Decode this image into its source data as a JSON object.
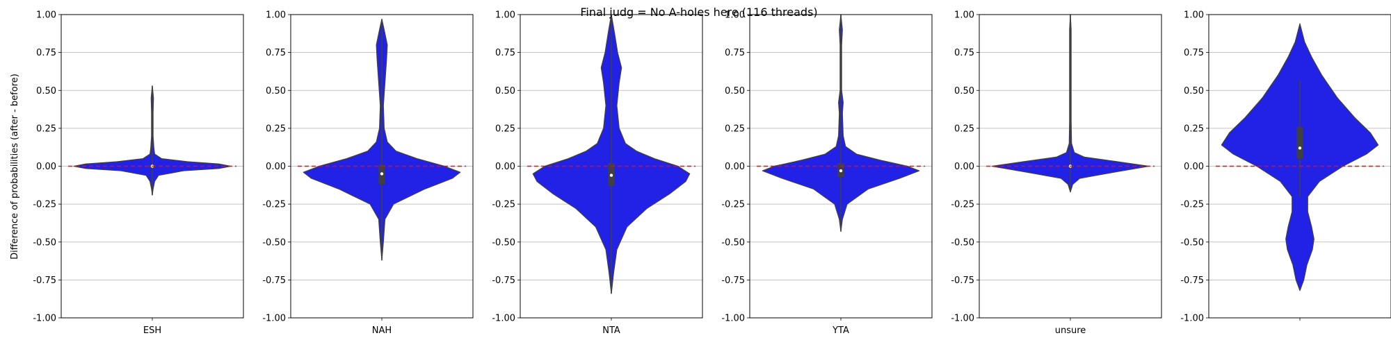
{
  "chart_data": {
    "type": "violin",
    "title": "Final judg = No A-holes here (116 threads)",
    "ylabel": "Difference of probabilities (after - before)",
    "ylim": [
      -1.0,
      1.0
    ],
    "yticks": [
      "-1.00",
      "-0.75",
      "-0.50",
      "-0.25",
      "0.00",
      "0.25",
      "0.50",
      "0.75",
      "1.00"
    ],
    "grid": "horizontal",
    "reference_line": {
      "y": 0.0,
      "style": "dashed",
      "color": "#ff0000"
    },
    "colors": {
      "violin_fill": "#2222e6",
      "violin_edge": "#404040",
      "box": "#404040",
      "median": "#ffffff"
    },
    "panels": [
      {
        "category": "ESH",
        "summary": {
          "min": -0.19,
          "q1": -0.01,
          "median": 0.0,
          "q3": 0.01,
          "max": 0.53
        },
        "density_profile": [
          [
            -0.19,
            0.0
          ],
          [
            -0.15,
            0.01
          ],
          [
            -0.1,
            0.03
          ],
          [
            -0.06,
            0.08
          ],
          [
            -0.03,
            0.4
          ],
          [
            -0.015,
            0.85
          ],
          [
            0.0,
            1.0
          ],
          [
            0.015,
            0.85
          ],
          [
            0.03,
            0.45
          ],
          [
            0.05,
            0.12
          ],
          [
            0.08,
            0.03
          ],
          [
            0.12,
            0.02
          ],
          [
            0.2,
            0.01
          ],
          [
            0.35,
            0.01
          ],
          [
            0.45,
            0.015
          ],
          [
            0.53,
            0.0
          ]
        ]
      },
      {
        "category": "NAH",
        "summary": {
          "min": -0.62,
          "q1": -0.12,
          "median": -0.05,
          "q3": 0.01,
          "max": 0.97
        },
        "density_profile": [
          [
            -0.62,
            0.0
          ],
          [
            -0.5,
            0.02
          ],
          [
            -0.35,
            0.04
          ],
          [
            -0.25,
            0.15
          ],
          [
            -0.15,
            0.55
          ],
          [
            -0.08,
            0.9
          ],
          [
            -0.04,
            1.0
          ],
          [
            0.0,
            0.8
          ],
          [
            0.05,
            0.45
          ],
          [
            0.1,
            0.18
          ],
          [
            0.16,
            0.07
          ],
          [
            0.25,
            0.03
          ],
          [
            0.4,
            0.02
          ],
          [
            0.55,
            0.04
          ],
          [
            0.7,
            0.06
          ],
          [
            0.8,
            0.07
          ],
          [
            0.9,
            0.03
          ],
          [
            0.97,
            0.0
          ]
        ]
      },
      {
        "category": "NTA",
        "summary": {
          "min": -0.84,
          "q1": -0.13,
          "median": -0.06,
          "q3": 0.02,
          "max": 1.0
        },
        "density_profile": [
          [
            -0.84,
            0.0
          ],
          [
            -0.7,
            0.03
          ],
          [
            -0.55,
            0.07
          ],
          [
            -0.4,
            0.2
          ],
          [
            -0.28,
            0.45
          ],
          [
            -0.18,
            0.75
          ],
          [
            -0.1,
            0.95
          ],
          [
            -0.05,
            1.0
          ],
          [
            0.0,
            0.85
          ],
          [
            0.05,
            0.55
          ],
          [
            0.1,
            0.32
          ],
          [
            0.15,
            0.18
          ],
          [
            0.25,
            0.1
          ],
          [
            0.4,
            0.07
          ],
          [
            0.55,
            0.1
          ],
          [
            0.65,
            0.13
          ],
          [
            0.75,
            0.08
          ],
          [
            0.88,
            0.04
          ],
          [
            1.0,
            0.0
          ]
        ]
      },
      {
        "category": "YTA",
        "summary": {
          "min": -0.43,
          "q1": -0.07,
          "median": -0.03,
          "q3": 0.02,
          "max": 1.0
        },
        "density_profile": [
          [
            -0.43,
            0.0
          ],
          [
            -0.35,
            0.02
          ],
          [
            -0.25,
            0.08
          ],
          [
            -0.15,
            0.35
          ],
          [
            -0.08,
            0.75
          ],
          [
            -0.03,
            1.0
          ],
          [
            0.0,
            0.85
          ],
          [
            0.04,
            0.5
          ],
          [
            0.08,
            0.2
          ],
          [
            0.13,
            0.06
          ],
          [
            0.2,
            0.03
          ],
          [
            0.35,
            0.02
          ],
          [
            0.42,
            0.03
          ],
          [
            0.5,
            0.01
          ],
          [
            0.8,
            0.01
          ],
          [
            0.9,
            0.02
          ],
          [
            1.0,
            0.0
          ]
        ]
      },
      {
        "category": "unsure",
        "summary": {
          "min": -0.17,
          "q1": -0.005,
          "median": 0.0,
          "q3": 0.005,
          "max": 1.0
        },
        "density_profile": [
          [
            -0.17,
            0.0
          ],
          [
            -0.12,
            0.03
          ],
          [
            -0.08,
            0.12
          ],
          [
            -0.04,
            0.55
          ],
          [
            0.0,
            1.0
          ],
          [
            0.03,
            0.6
          ],
          [
            0.06,
            0.18
          ],
          [
            0.09,
            0.05
          ],
          [
            0.15,
            0.015
          ],
          [
            0.3,
            0.01
          ],
          [
            0.6,
            0.01
          ],
          [
            0.9,
            0.01
          ],
          [
            1.0,
            0.0
          ]
        ]
      },
      {
        "category": "",
        "summary": {
          "min": -0.2,
          "q1": 0.05,
          "median": 0.12,
          "q3": 0.26,
          "max": 0.57
        },
        "density_profile": [
          [
            -0.82,
            0.0
          ],
          [
            -0.75,
            0.05
          ],
          [
            -0.65,
            0.09
          ],
          [
            -0.55,
            0.16
          ],
          [
            -0.48,
            0.18
          ],
          [
            -0.4,
            0.15
          ],
          [
            -0.3,
            0.1
          ],
          [
            -0.2,
            0.1
          ],
          [
            -0.1,
            0.25
          ],
          [
            0.0,
            0.55
          ],
          [
            0.08,
            0.85
          ],
          [
            0.14,
            1.0
          ],
          [
            0.22,
            0.9
          ],
          [
            0.32,
            0.7
          ],
          [
            0.45,
            0.48
          ],
          [
            0.6,
            0.28
          ],
          [
            0.72,
            0.15
          ],
          [
            0.82,
            0.06
          ],
          [
            0.94,
            0.0
          ]
        ]
      }
    ]
  }
}
